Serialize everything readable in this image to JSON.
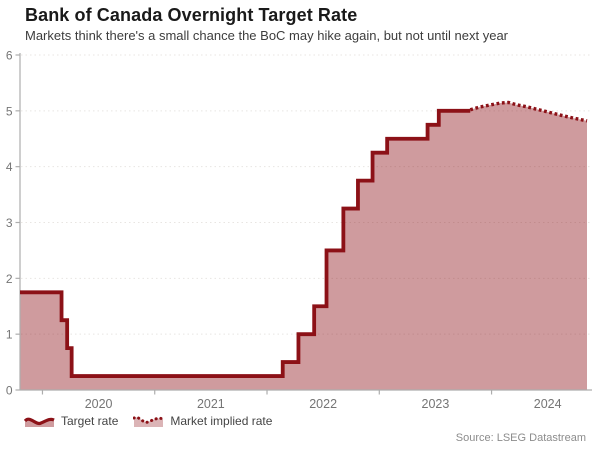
{
  "header": {
    "title": "Bank of Canada Overnight Target Rate",
    "subtitle": "Markets think there's a small chance the BoC may hike again, but not until next year"
  },
  "legend": {
    "items": [
      {
        "label": "Target rate",
        "icon": "solid-wave-line-icon"
      },
      {
        "label": "Market implied rate",
        "icon": "dotted-wave-line-icon"
      }
    ]
  },
  "footer": {
    "source": "Source: LSEG Datastream"
  },
  "chart_data": {
    "type": "area",
    "title": "Bank of Canada Overnight Target Rate",
    "subtitle": "Markets think there's a small chance the BoC may hike again, but not until next year",
    "x_range": [
      2019.8,
      2024.85
    ],
    "y_range": [
      0,
      6
    ],
    "x_ticks": [
      2020,
      2021,
      2022,
      2023,
      2024
    ],
    "y_ticks": [
      0,
      1,
      2,
      3,
      4,
      5,
      6
    ],
    "grid": "horizontal-dotted",
    "legend_position": "bottom-left",
    "colors": {
      "line": "#8c1117",
      "fill": "rgba(140,17,23,0.42)",
      "grid": "#e8e5e2",
      "axis": "#adadad",
      "tick_label": "#757575"
    },
    "series": [
      {
        "name": "Target rate",
        "type": "step-line",
        "style": "solid",
        "points": [
          [
            2019.8,
            1.75
          ],
          [
            2020.17,
            1.25
          ],
          [
            2020.22,
            0.75
          ],
          [
            2020.26,
            0.25
          ],
          [
            2022.14,
            0.5
          ],
          [
            2022.28,
            1.0
          ],
          [
            2022.42,
            1.5
          ],
          [
            2022.53,
            2.5
          ],
          [
            2022.68,
            3.25
          ],
          [
            2022.81,
            3.75
          ],
          [
            2022.94,
            4.25
          ],
          [
            2023.07,
            4.5
          ],
          [
            2023.43,
            4.75
          ],
          [
            2023.53,
            5.0
          ],
          [
            2023.81,
            5.0
          ]
        ]
      },
      {
        "name": "Market implied rate",
        "type": "line",
        "style": "dotted",
        "points": [
          [
            2023.81,
            5.02
          ],
          [
            2023.9,
            5.07
          ],
          [
            2024.0,
            5.11
          ],
          [
            2024.08,
            5.14
          ],
          [
            2024.15,
            5.15
          ],
          [
            2024.22,
            5.11
          ],
          [
            2024.32,
            5.07
          ],
          [
            2024.42,
            5.02
          ],
          [
            2024.52,
            4.97
          ],
          [
            2024.62,
            4.92
          ],
          [
            2024.73,
            4.87
          ],
          [
            2024.85,
            4.82
          ]
        ]
      }
    ]
  }
}
